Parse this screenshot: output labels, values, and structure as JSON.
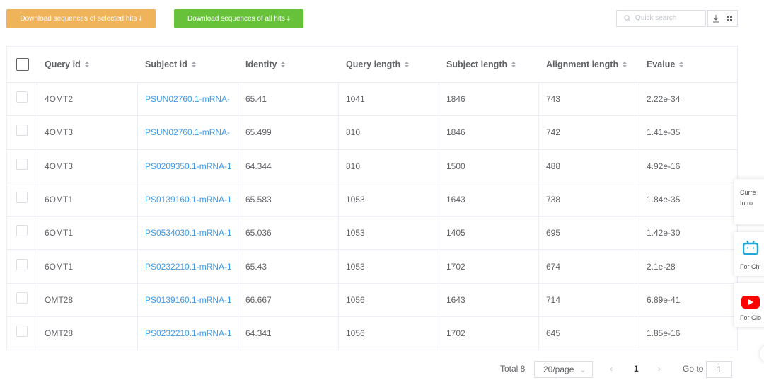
{
  "toolbar": {
    "download_selected": "Download sequences of selected hits",
    "download_all": "Download sequences of all hits",
    "search_placeholder": "Quick search"
  },
  "table": {
    "headers": [
      "Query id",
      "Subject id",
      "Identity",
      "Query length",
      "Subject length",
      "Alignment length",
      "Evalue"
    ],
    "rows": [
      [
        "4OMT2",
        "PSUN02760.1-mRNA-",
        "65.41",
        "1041",
        "1846",
        "743",
        "2.22e-34"
      ],
      [
        "4OMT3",
        "PSUN02760.1-mRNA-",
        "65.499",
        "810",
        "1846",
        "742",
        "1.41e-35"
      ],
      [
        "4OMT3",
        "PS0209350.1-mRNA-1",
        "64.344",
        "810",
        "1500",
        "488",
        "4.92e-16"
      ],
      [
        "6OMT1",
        "PS0139160.1-mRNA-1",
        "65.583",
        "1053",
        "1643",
        "738",
        "1.84e-35"
      ],
      [
        "6OMT1",
        "PS0534030.1-mRNA-1",
        "65.036",
        "1053",
        "1405",
        "695",
        "1.42e-30"
      ],
      [
        "6OMT1",
        "PS0232210.1-mRNA-1",
        "65.43",
        "1053",
        "1702",
        "674",
        "2.1e-28"
      ],
      [
        "OMT28",
        "PS0139160.1-mRNA-1",
        "66.667",
        "1056",
        "1643",
        "714",
        "6.89e-41"
      ],
      [
        "OMT28",
        "PS0232210.1-mRNA-1",
        "64.341",
        "1056",
        "1702",
        "645",
        "1.85e-16"
      ]
    ]
  },
  "pagination": {
    "total": "Total 8",
    "page_size": "20/page",
    "current": "1",
    "goto_label": "Go to",
    "goto_value": "1"
  },
  "side_panel": {
    "line1": "Curre",
    "line2": "Intro",
    "bilibili": "For Chi",
    "youtube": "For Glo"
  }
}
